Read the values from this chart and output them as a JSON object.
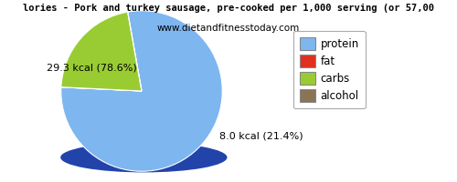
{
  "title": "lories - Pork and turkey sausage, pre-cooked per 1,000 serving (or 57,00",
  "subtitle": "www.dietandfitnesstoday.com",
  "slices": [
    {
      "label": "protein",
      "value": 29.3,
      "pct": 78.6,
      "color": "#7eb6f0"
    },
    {
      "label": "fat",
      "value": 0.01,
      "pct": 0.0,
      "color": "#e03020"
    },
    {
      "label": "carbs",
      "value": 8.0,
      "pct": 21.4,
      "color": "#99cc33"
    },
    {
      "label": "alcohol",
      "value": 0.0,
      "pct": 0.0,
      "color": "#8b7355"
    }
  ],
  "legend_labels": [
    "protein",
    "fat",
    "carbs",
    "alcohol"
  ],
  "legend_colors": [
    "#7eb6f0",
    "#e03020",
    "#99cc33",
    "#8b7355"
  ],
  "label_protein": "29.3 kcal (78.6%)",
  "label_carbs": "8.0 kcal (21.4%)",
  "bg_color": "#ffffff",
  "title_fontsize": 7.5,
  "subtitle_fontsize": 7.5,
  "label_fontsize": 8,
  "legend_fontsize": 8.5
}
